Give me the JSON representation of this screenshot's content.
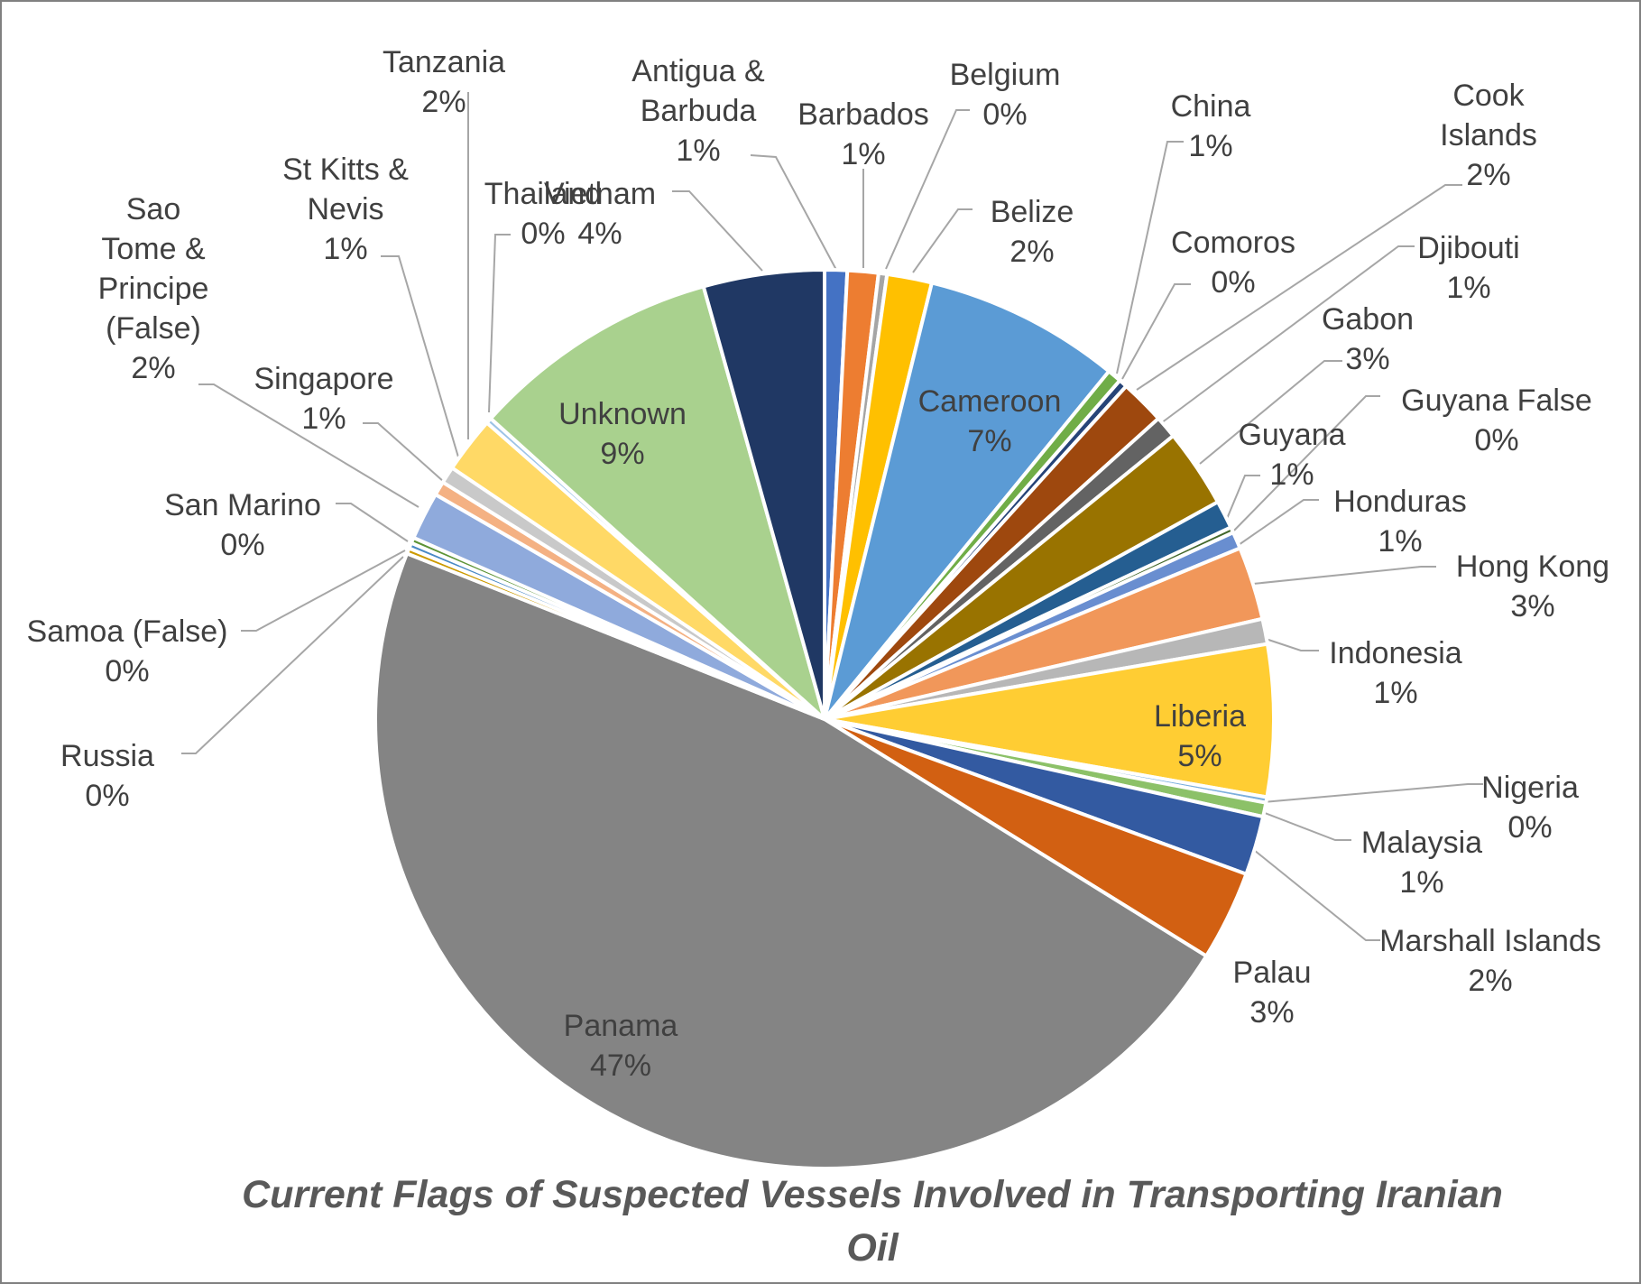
{
  "chart_data": {
    "type": "pie",
    "title_line1": "Current Flags of  Suspected Vessels Involved in Transporting Iranian",
    "title_line2": "Oil",
    "slices": [
      {
        "name": "Antigua & Barbuda",
        "pct": "1%",
        "value": 0.8,
        "color": "#4472C4",
        "label_lines": [
          "Antigua &",
          "Barbuda",
          "1%"
        ]
      },
      {
        "name": "Barbados",
        "pct": "1%",
        "value": 1.1,
        "color": "#ED7D31",
        "label_lines": [
          "Barbados",
          "1%"
        ]
      },
      {
        "name": "Belgium",
        "pct": "0%",
        "value": 0.3,
        "color": "#A5A5A5",
        "label_lines": [
          "Belgium",
          "0%"
        ]
      },
      {
        "name": "Belize",
        "pct": "2%",
        "value": 1.6,
        "color": "#FFC000",
        "label_lines": [
          "Belize",
          "2%"
        ]
      },
      {
        "name": "Cameroon",
        "pct": "7%",
        "value": 7.0,
        "color": "#5B9BD5",
        "label_lines": [
          "Cameroon",
          "7%"
        ]
      },
      {
        "name": "China",
        "pct": "1%",
        "value": 0.5,
        "color": "#70AD47",
        "label_lines": [
          "China",
          "1%"
        ]
      },
      {
        "name": "Comoros",
        "pct": "0%",
        "value": 0.3,
        "color": "#264478",
        "label_lines": [
          "Comoros",
          "0%"
        ]
      },
      {
        "name": "Cook Islands",
        "pct": "2%",
        "value": 1.6,
        "color": "#9E480E",
        "label_lines": [
          "Cook",
          "Islands",
          "2%"
        ]
      },
      {
        "name": "Djibouti",
        "pct": "1%",
        "value": 0.8,
        "color": "#636363",
        "label_lines": [
          "Djibouti",
          "1%"
        ]
      },
      {
        "name": "Gabon",
        "pct": "3%",
        "value": 2.8,
        "color": "#997300",
        "label_lines": [
          "Gabon",
          "3%"
        ]
      },
      {
        "name": "Guyana",
        "pct": "1%",
        "value": 1.0,
        "color": "#255E91",
        "label_lines": [
          "Guyana",
          "1%"
        ]
      },
      {
        "name": "Guyana False",
        "pct": "0%",
        "value": 0.2,
        "color": "#43682B",
        "label_lines": [
          "Guyana False",
          "0%"
        ]
      },
      {
        "name": "Honduras",
        "pct": "1%",
        "value": 0.6,
        "color": "#698ED0",
        "label_lines": [
          "Honduras",
          "1%"
        ]
      },
      {
        "name": "Hong Kong",
        "pct": "3%",
        "value": 2.6,
        "color": "#F1975A",
        "label_lines": [
          "Hong Kong",
          "3%"
        ]
      },
      {
        "name": "Indonesia",
        "pct": "1%",
        "value": 0.9,
        "color": "#B7B7B7",
        "label_lines": [
          "Indonesia",
          "1%"
        ]
      },
      {
        "name": "Liberia",
        "pct": "5%",
        "value": 5.4,
        "color": "#FFCD33",
        "label_lines": [
          "Liberia",
          "5%"
        ]
      },
      {
        "name": "Nigeria",
        "pct": "0%",
        "value": 0.2,
        "color": "#7CAFDD",
        "label_lines": [
          "Nigeria",
          "0%"
        ]
      },
      {
        "name": "Malaysia",
        "pct": "1%",
        "value": 0.5,
        "color": "#8CC168",
        "label_lines": [
          "Malaysia",
          "1%"
        ]
      },
      {
        "name": "Marshall Islands",
        "pct": "2%",
        "value": 2.1,
        "color": "#335AA1",
        "label_lines": [
          "Marshall Islands",
          "2%"
        ]
      },
      {
        "name": "Palau",
        "pct": "3%",
        "value": 3.2,
        "color": "#D26012",
        "label_lines": [
          "Palau",
          "3%"
        ]
      },
      {
        "name": "Panama",
        "pct": "47%",
        "value": 46.7,
        "color": "#848484",
        "label_lines": [
          "Panama",
          "47%"
        ]
      },
      {
        "name": "Russia",
        "pct": "0%",
        "value": 0.2,
        "color": "#CC9A00",
        "label_lines": [
          "Russia",
          "0%"
        ]
      },
      {
        "name": "Samoa (False)",
        "pct": "0%",
        "value": 0.2,
        "color": "#4A8AC6",
        "label_lines": [
          "Samoa (False)",
          "0%"
        ]
      },
      {
        "name": "San Marino",
        "pct": "0%",
        "value": 0.2,
        "color": "#5E9437",
        "label_lines": [
          "San Marino",
          "0%"
        ]
      },
      {
        "name": "Sao Tome & Principe (False)",
        "pct": "2%",
        "value": 1.7,
        "color": "#8FAADC",
        "label_lines": [
          "Sao",
          "Tome &",
          "Principe",
          "(False)",
          "2%"
        ]
      },
      {
        "name": "Singapore",
        "pct": "1%",
        "value": 0.5,
        "color": "#F4B183",
        "label_lines": [
          "Singapore",
          "1%"
        ]
      },
      {
        "name": "St Kitts & Nevis",
        "pct": "1%",
        "value": 0.6,
        "color": "#C9C9C9",
        "label_lines": [
          "St Kitts &",
          "Nevis",
          "1%"
        ]
      },
      {
        "name": "Tanzania",
        "pct": "2%",
        "value": 2.0,
        "color": "#FFD966",
        "label_lines": [
          "Tanzania",
          "2%"
        ]
      },
      {
        "name": "Thailand",
        "pct": "0%",
        "value": 0.2,
        "color": "#9DC3E6",
        "label_lines": [
          "Thailand",
          "0%"
        ]
      },
      {
        "name": "Unknown",
        "pct": "9%",
        "value": 8.9,
        "color": "#A9D18E",
        "label_lines": [
          "Unknown",
          "9%"
        ]
      },
      {
        "name": "Vietnam",
        "pct": "4%",
        "value": 4.3,
        "color": "#203864",
        "label_lines": [
          "Vietnam",
          "4%"
        ]
      }
    ]
  }
}
